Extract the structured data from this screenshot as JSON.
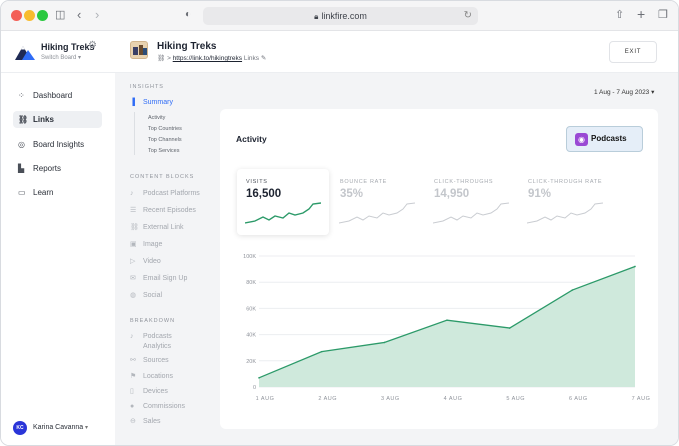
{
  "browser": {
    "url": "linkfire.com",
    "traffic_lights": [
      "#f35f57",
      "#f8bc2f",
      "#2ac840"
    ]
  },
  "workspace": {
    "name": "Hiking Treks",
    "switch_label": "Switch Board",
    "switch_caret": "▾"
  },
  "project": {
    "title": "Hiking Treks",
    "link_url": "https://link.to/hikingtreks",
    "link_suffix": "Links",
    "exit_label": "EXIT"
  },
  "nav": [
    {
      "label": "Dashboard",
      "icon": "grid-icon"
    },
    {
      "label": "Links",
      "icon": "link-icon"
    },
    {
      "label": "Board Insights",
      "icon": "target-icon"
    },
    {
      "label": "Reports",
      "icon": "bar-chart-icon"
    },
    {
      "label": "Learn",
      "icon": "book-icon"
    }
  ],
  "user": {
    "initials": "KC",
    "name": "Karina Cavanna",
    "avatar_color": "#2a35d8"
  },
  "insights": {
    "heading": "INSIGHTS",
    "summary_label": "Summary",
    "sub_items": [
      "Activity",
      "Top Countries",
      "Top Channels",
      "Top Services"
    ]
  },
  "content_blocks": {
    "heading": "CONTENT BLOCKS",
    "items": [
      "Podcast Platforms",
      "Recent Episodes",
      "External Link",
      "Image",
      "Video",
      "Email Sign Up",
      "Social"
    ]
  },
  "breakdown": {
    "heading": "BREAKDOWN",
    "items": [
      "Podcasts",
      "Analytics",
      "Sources",
      "Locations",
      "Devices",
      "Commissions",
      "Sales"
    ]
  },
  "date_range": "1 Aug - 7 Aug 2023",
  "date_caret": "▾",
  "activity": {
    "title": "Activity",
    "podcasts_label": "Podcasts",
    "stats": [
      {
        "label": "VISITS",
        "value": "16,500"
      },
      {
        "label": "BOUNCE RATE",
        "value": "35%"
      },
      {
        "label": "CLICK-THROUGHS",
        "value": "14,950"
      },
      {
        "label": "CLICK-THROUGH RATE",
        "value": "91%"
      }
    ]
  },
  "colors": {
    "accent": "#2f6cf6",
    "chart_line": "#2c9a69",
    "chart_fill": "#cfe9dc"
  },
  "chart_data": {
    "type": "area",
    "categories": [
      "1 AUG",
      "2 AUG",
      "3 AUG",
      "4 AUG",
      "5 AUG",
      "6 AUG",
      "7 AUG"
    ],
    "values": [
      7000,
      27000,
      34000,
      51000,
      45000,
      74000,
      92000
    ],
    "y_ticks": [
      0,
      20000,
      40000,
      60000,
      80000,
      100000
    ],
    "y_tick_labels": [
      "0",
      "20K",
      "40K",
      "60K",
      "80K",
      "100K"
    ],
    "ylim": [
      0,
      100000
    ],
    "grid": true
  }
}
